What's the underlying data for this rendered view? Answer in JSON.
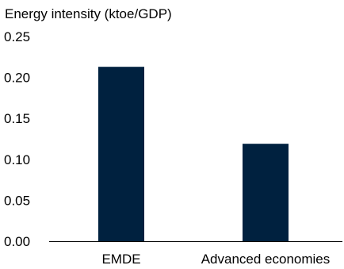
{
  "chart_data": {
    "type": "bar",
    "title": "Energy intensity (ktoe/GDP)",
    "xlabel": "",
    "ylabel": "",
    "categories": [
      "EMDE",
      "Advanced economies"
    ],
    "values": [
      0.213,
      0.119
    ],
    "ylim": [
      0,
      0.25
    ],
    "yticks": [
      "0.00",
      "0.05",
      "0.10",
      "0.15",
      "0.20",
      "0.25"
    ],
    "grid": false,
    "legend": "none",
    "bar_color": "#00213f"
  }
}
